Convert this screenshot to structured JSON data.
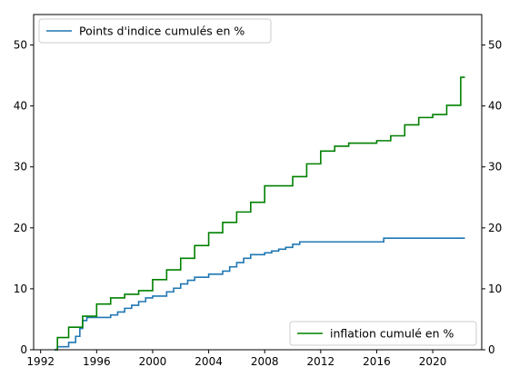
{
  "chart_data": {
    "type": "line",
    "title": "",
    "xlabel": "",
    "ylabel": "",
    "xlim": [
      1991.5,
      2023.5
    ],
    "ylim": [
      0,
      55
    ],
    "x_ticks": [
      1992,
      1996,
      2000,
      2004,
      2008,
      2012,
      2016,
      2020
    ],
    "y_ticks": [
      0,
      10,
      20,
      30,
      40,
      50
    ],
    "grid": false,
    "step": "post",
    "series": [
      {
        "name": "Points d'indice cumulés en %",
        "color": "#1f77b4",
        "axis": "left",
        "legend_position": "upper-left",
        "points": [
          [
            1993.0,
            0.0
          ],
          [
            1993.2,
            0.5
          ],
          [
            1994.0,
            1.2
          ],
          [
            1994.5,
            2.2
          ],
          [
            1994.8,
            3.5
          ],
          [
            1995.0,
            4.8
          ],
          [
            1995.3,
            5.3
          ],
          [
            1997.0,
            5.7
          ],
          [
            1997.5,
            6.2
          ],
          [
            1998.0,
            6.8
          ],
          [
            1998.5,
            7.3
          ],
          [
            1999.0,
            7.9
          ],
          [
            1999.5,
            8.5
          ],
          [
            2000.0,
            8.8
          ],
          [
            2001.0,
            9.5
          ],
          [
            2001.5,
            10.1
          ],
          [
            2002.0,
            10.8
          ],
          [
            2002.5,
            11.4
          ],
          [
            2003.0,
            11.9
          ],
          [
            2004.0,
            12.4
          ],
          [
            2005.0,
            12.9
          ],
          [
            2005.5,
            13.6
          ],
          [
            2006.0,
            14.3
          ],
          [
            2006.5,
            15.0
          ],
          [
            2007.0,
            15.6
          ],
          [
            2008.0,
            15.9
          ],
          [
            2008.5,
            16.2
          ],
          [
            2009.0,
            16.5
          ],
          [
            2009.5,
            16.8
          ],
          [
            2010.0,
            17.3
          ],
          [
            2010.5,
            17.7
          ],
          [
            2016.5,
            18.3
          ],
          [
            2022.3,
            18.3
          ]
        ]
      },
      {
        "name": "inflation cumulé en %",
        "color": "#008000",
        "axis": "right",
        "legend_position": "lower-right",
        "points": [
          [
            1993.0,
            0.0
          ],
          [
            1993.2,
            2.0
          ],
          [
            1994.0,
            3.7
          ],
          [
            1995.0,
            5.5
          ],
          [
            1996.0,
            7.5
          ],
          [
            1997.0,
            8.5
          ],
          [
            1998.0,
            9.1
          ],
          [
            1999.0,
            9.7
          ],
          [
            2000.0,
            11.5
          ],
          [
            2001.0,
            13.1
          ],
          [
            2002.0,
            15.0
          ],
          [
            2003.0,
            17.1
          ],
          [
            2004.0,
            19.2
          ],
          [
            2005.0,
            20.9
          ],
          [
            2006.0,
            22.6
          ],
          [
            2007.0,
            24.2
          ],
          [
            2008.0,
            26.9
          ],
          [
            2010.0,
            28.4
          ],
          [
            2011.0,
            30.5
          ],
          [
            2012.0,
            32.6
          ],
          [
            2013.0,
            33.4
          ],
          [
            2014.0,
            33.9
          ],
          [
            2016.0,
            34.3
          ],
          [
            2017.0,
            35.1
          ],
          [
            2018.0,
            36.9
          ],
          [
            2019.0,
            38.1
          ],
          [
            2020.0,
            38.6
          ],
          [
            2021.0,
            40.1
          ],
          [
            2022.0,
            44.7
          ],
          [
            2022.3,
            44.7
          ]
        ]
      }
    ]
  }
}
